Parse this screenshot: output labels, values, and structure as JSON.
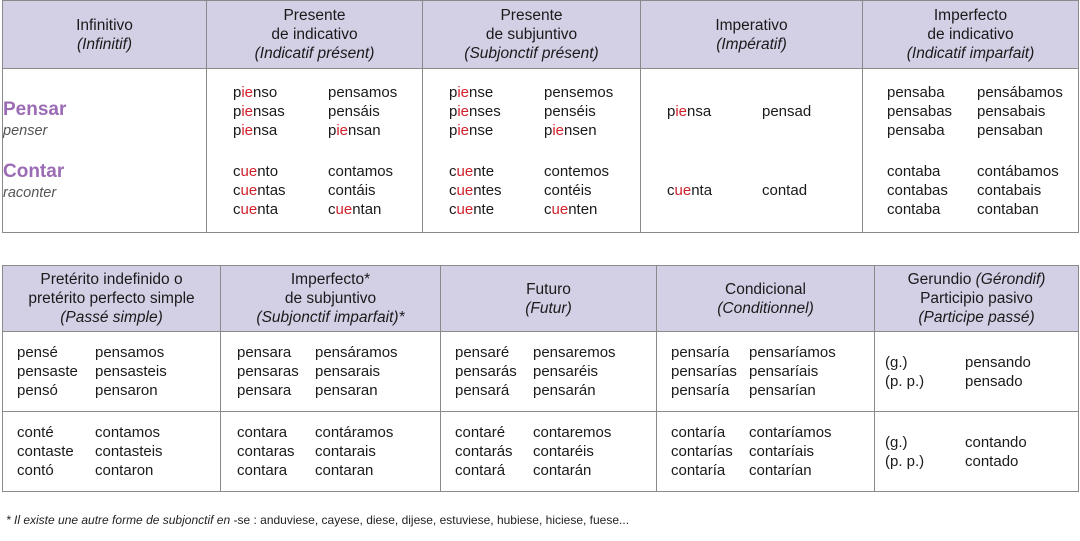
{
  "top_headers": [
    {
      "es": "Infinitivo",
      "fr": "(Infinitif)"
    },
    {
      "es_l1": "Presente",
      "es_l2": "de indicativo",
      "fr": "(Indicatif présent)"
    },
    {
      "es_l1": "Presente",
      "es_l2": "de subjuntivo",
      "fr": "(Subjonctif présent)"
    },
    {
      "es": "Imperativo",
      "fr": "(Impératif)"
    },
    {
      "es_l1": "Imperfecto",
      "es_l2": "de indicativo",
      "fr": "(Indicatif imparfait)"
    }
  ],
  "verbs": [
    {
      "name": "Pensar",
      "translation": "penser"
    },
    {
      "name": "Contar",
      "translation": "raconter"
    }
  ],
  "pensar": {
    "pres_ind": [
      [
        "p",
        "ie",
        "nso"
      ],
      [
        "p",
        "ie",
        "nsas"
      ],
      [
        "p",
        "ie",
        "nsa"
      ],
      [
        "",
        "",
        "pensamos"
      ],
      [
        "",
        "",
        "pensáis"
      ],
      [
        "p",
        "ie",
        "nsan"
      ]
    ],
    "pres_subj": [
      [
        "p",
        "ie",
        "nse"
      ],
      [
        "p",
        "ie",
        "nses"
      ],
      [
        "p",
        "ie",
        "nse"
      ],
      [
        "",
        "",
        "pensemos"
      ],
      [
        "",
        "",
        "penséis"
      ],
      [
        "p",
        "ie",
        "nsen"
      ]
    ],
    "imperativo": [
      [
        "p",
        "ie",
        "nsa"
      ],
      [
        "",
        "",
        "pensad"
      ]
    ],
    "imperf_ind": [
      "pensaba",
      "pensabas",
      "pensaba",
      "pensábamos",
      "pensabais",
      "pensaban"
    ],
    "indefinido": [
      "pensé",
      "pensaste",
      "pensó",
      "pensamos",
      "pensasteis",
      "pensaron"
    ],
    "imperf_subj": [
      "pensara",
      "pensaras",
      "pensara",
      "pensáramos",
      "pensarais",
      "pensaran"
    ],
    "futuro": [
      "pensaré",
      "pensarás",
      "pensará",
      "pensaremos",
      "pensaréis",
      "pensarán"
    ],
    "condicional": [
      "pensaría",
      "pensarías",
      "pensaría",
      "pensaríamos",
      "pensaríais",
      "pensarían"
    ],
    "gerundio": {
      "g_label": "(g.)",
      "pp_label": "(p. p.)",
      "g": "pensando",
      "pp": "pensado"
    }
  },
  "contar": {
    "pres_ind": [
      [
        "c",
        "ue",
        "nto"
      ],
      [
        "c",
        "ue",
        "ntas"
      ],
      [
        "c",
        "ue",
        "nta"
      ],
      [
        "",
        "",
        "contamos"
      ],
      [
        "",
        "",
        "contáis"
      ],
      [
        "c",
        "ue",
        "ntan"
      ]
    ],
    "pres_subj": [
      [
        "c",
        "ue",
        "nte"
      ],
      [
        "c",
        "ue",
        "ntes"
      ],
      [
        "c",
        "ue",
        "nte"
      ],
      [
        "",
        "",
        "contemos"
      ],
      [
        "",
        "",
        "contéis"
      ],
      [
        "c",
        "ue",
        "nten"
      ]
    ],
    "imperativo": [
      [
        "c",
        "ue",
        "nta"
      ],
      [
        "",
        "",
        "contad"
      ]
    ],
    "imperf_ind": [
      "contaba",
      "contabas",
      "contaba",
      "contábamos",
      "contabais",
      "contaban"
    ],
    "indefinido": [
      "conté",
      "contaste",
      "contó",
      "contamos",
      "contasteis",
      "contaron"
    ],
    "imperf_subj": [
      "contara",
      "contaras",
      "contara",
      "contáramos",
      "contarais",
      "contaran"
    ],
    "futuro": [
      "contaré",
      "contarás",
      "contará",
      "contaremos",
      "contaréis",
      "contarán"
    ],
    "condicional": [
      "contaría",
      "contarías",
      "contaría",
      "contaríamos",
      "contaríais",
      "contarían"
    ],
    "gerundio": {
      "g_label": "(g.)",
      "pp_label": "(p. p.)",
      "g": "contando",
      "pp": "contado"
    }
  },
  "bottom_headers": [
    {
      "es_l1": "Pretérito indefinido o",
      "es_l2": "pretérito perfecto simple",
      "fr": "(Passé simple)"
    },
    {
      "es_l1": "Imperfecto*",
      "es_l2": "de subjuntivo",
      "fr": "(Subjonctif imparfait)*"
    },
    {
      "es": "Futuro",
      "fr": "(Futur)"
    },
    {
      "es": "Condicional",
      "fr": "(Conditionnel)"
    },
    {
      "g_es": "Gerundio ",
      "g_fr": "(Gérondif)",
      "pp_es": "Participio pasivo",
      "pp_fr": "(Participe passé)"
    }
  ],
  "footnote": {
    "a": "* Il existe une autre forme de subjonctif en ",
    "b": "-se : anduviese, cayese, diese, dijese, estuviese, hubiese, hiciese, fuese..."
  },
  "accent_color": "#d0202a",
  "verb_color": "#9b6bb5",
  "header_bg": "#d3d0e6"
}
